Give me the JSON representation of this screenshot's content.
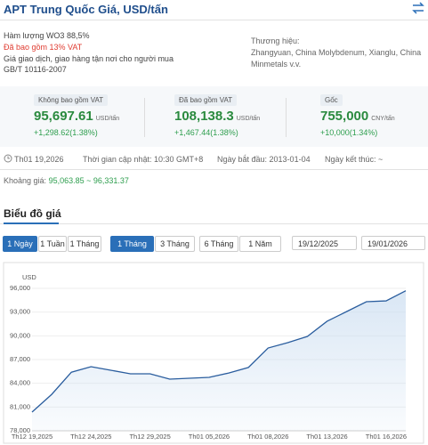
{
  "header": {
    "title": "APT Trung Quốc Giá, USD/tấn"
  },
  "info": {
    "left": [
      "Hàm lượng WO3 88,5%",
      "Đã bao gồm 13% VAT",
      "Giá giao dịch, giao hàng tận nơi cho người mua",
      "GB/T 10116-2007"
    ],
    "right": [
      "Thương hiệu:",
      "Zhangyuan, China Molybdenum, Xianglu, China",
      "Minmetals v.v."
    ]
  },
  "prices": [
    {
      "label": "Không bao gồm VAT",
      "value": "95,697.61",
      "unit": "USD/tấn",
      "change": "+1,298.62(1.38%)"
    },
    {
      "label": "Đã bao gồm VAT",
      "value": "108,138.3",
      "unit": "USD/tấn",
      "change": "+1,467.44(1.38%)"
    },
    {
      "label": "Gốc",
      "value": "755,000",
      "unit": "CNY/tấn",
      "change": "+10,000(1.34%)"
    }
  ],
  "meta": {
    "date": "Th01 19,2026",
    "updated": "Thời gian cập nhật: 10:30 GMT+8",
    "start": "Ngày bắt đầu: 2013-01-04",
    "end": "Ngày kết thúc: ~",
    "range_label": "Khoảng giá:",
    "range": "95,063.85 ~ 96,331.37"
  },
  "section_title": "Biểu đồ giá",
  "buttons_a": [
    "1 Ngày",
    "1 Tuần",
    "1 Tháng"
  ],
  "buttons_b": [
    "1 Tháng",
    "3 Tháng",
    "6 Tháng",
    "1 Năm"
  ],
  "date_from": "19/12/2025",
  "date_to": "19/01/2026",
  "chart_data": {
    "type": "line",
    "y_label": "USD",
    "color": "#2a5d9e",
    "categories": [
      "Th12 19,2025",
      null,
      null,
      "Th12 24,2025",
      null,
      null,
      "Th12 29,2025",
      null,
      null,
      "Th01 05,2026",
      null,
      null,
      "Th01 08,2026",
      null,
      null,
      "Th01 13,2026",
      null,
      null,
      "Th01 16,2026",
      null
    ],
    "values": [
      80360,
      82600,
      85400,
      86100,
      85650,
      85200,
      85200,
      84525,
      84640,
      84750,
      85300,
      86000,
      88460,
      89140,
      89925,
      91840,
      93075,
      94310,
      94420,
      95697.61
    ],
    "ylim": [
      78000,
      96000
    ],
    "yticks": [
      {
        "value": 78000,
        "label": "78,000"
      },
      {
        "value": 81000,
        "label": "81,000"
      },
      {
        "value": 84000,
        "label": "84,000"
      },
      {
        "value": 87000,
        "label": "87,000"
      },
      {
        "value": 90000,
        "label": "90,000"
      },
      {
        "value": 93000,
        "label": "93,000"
      },
      {
        "value": 96000,
        "label": "96,000"
      }
    ]
  }
}
